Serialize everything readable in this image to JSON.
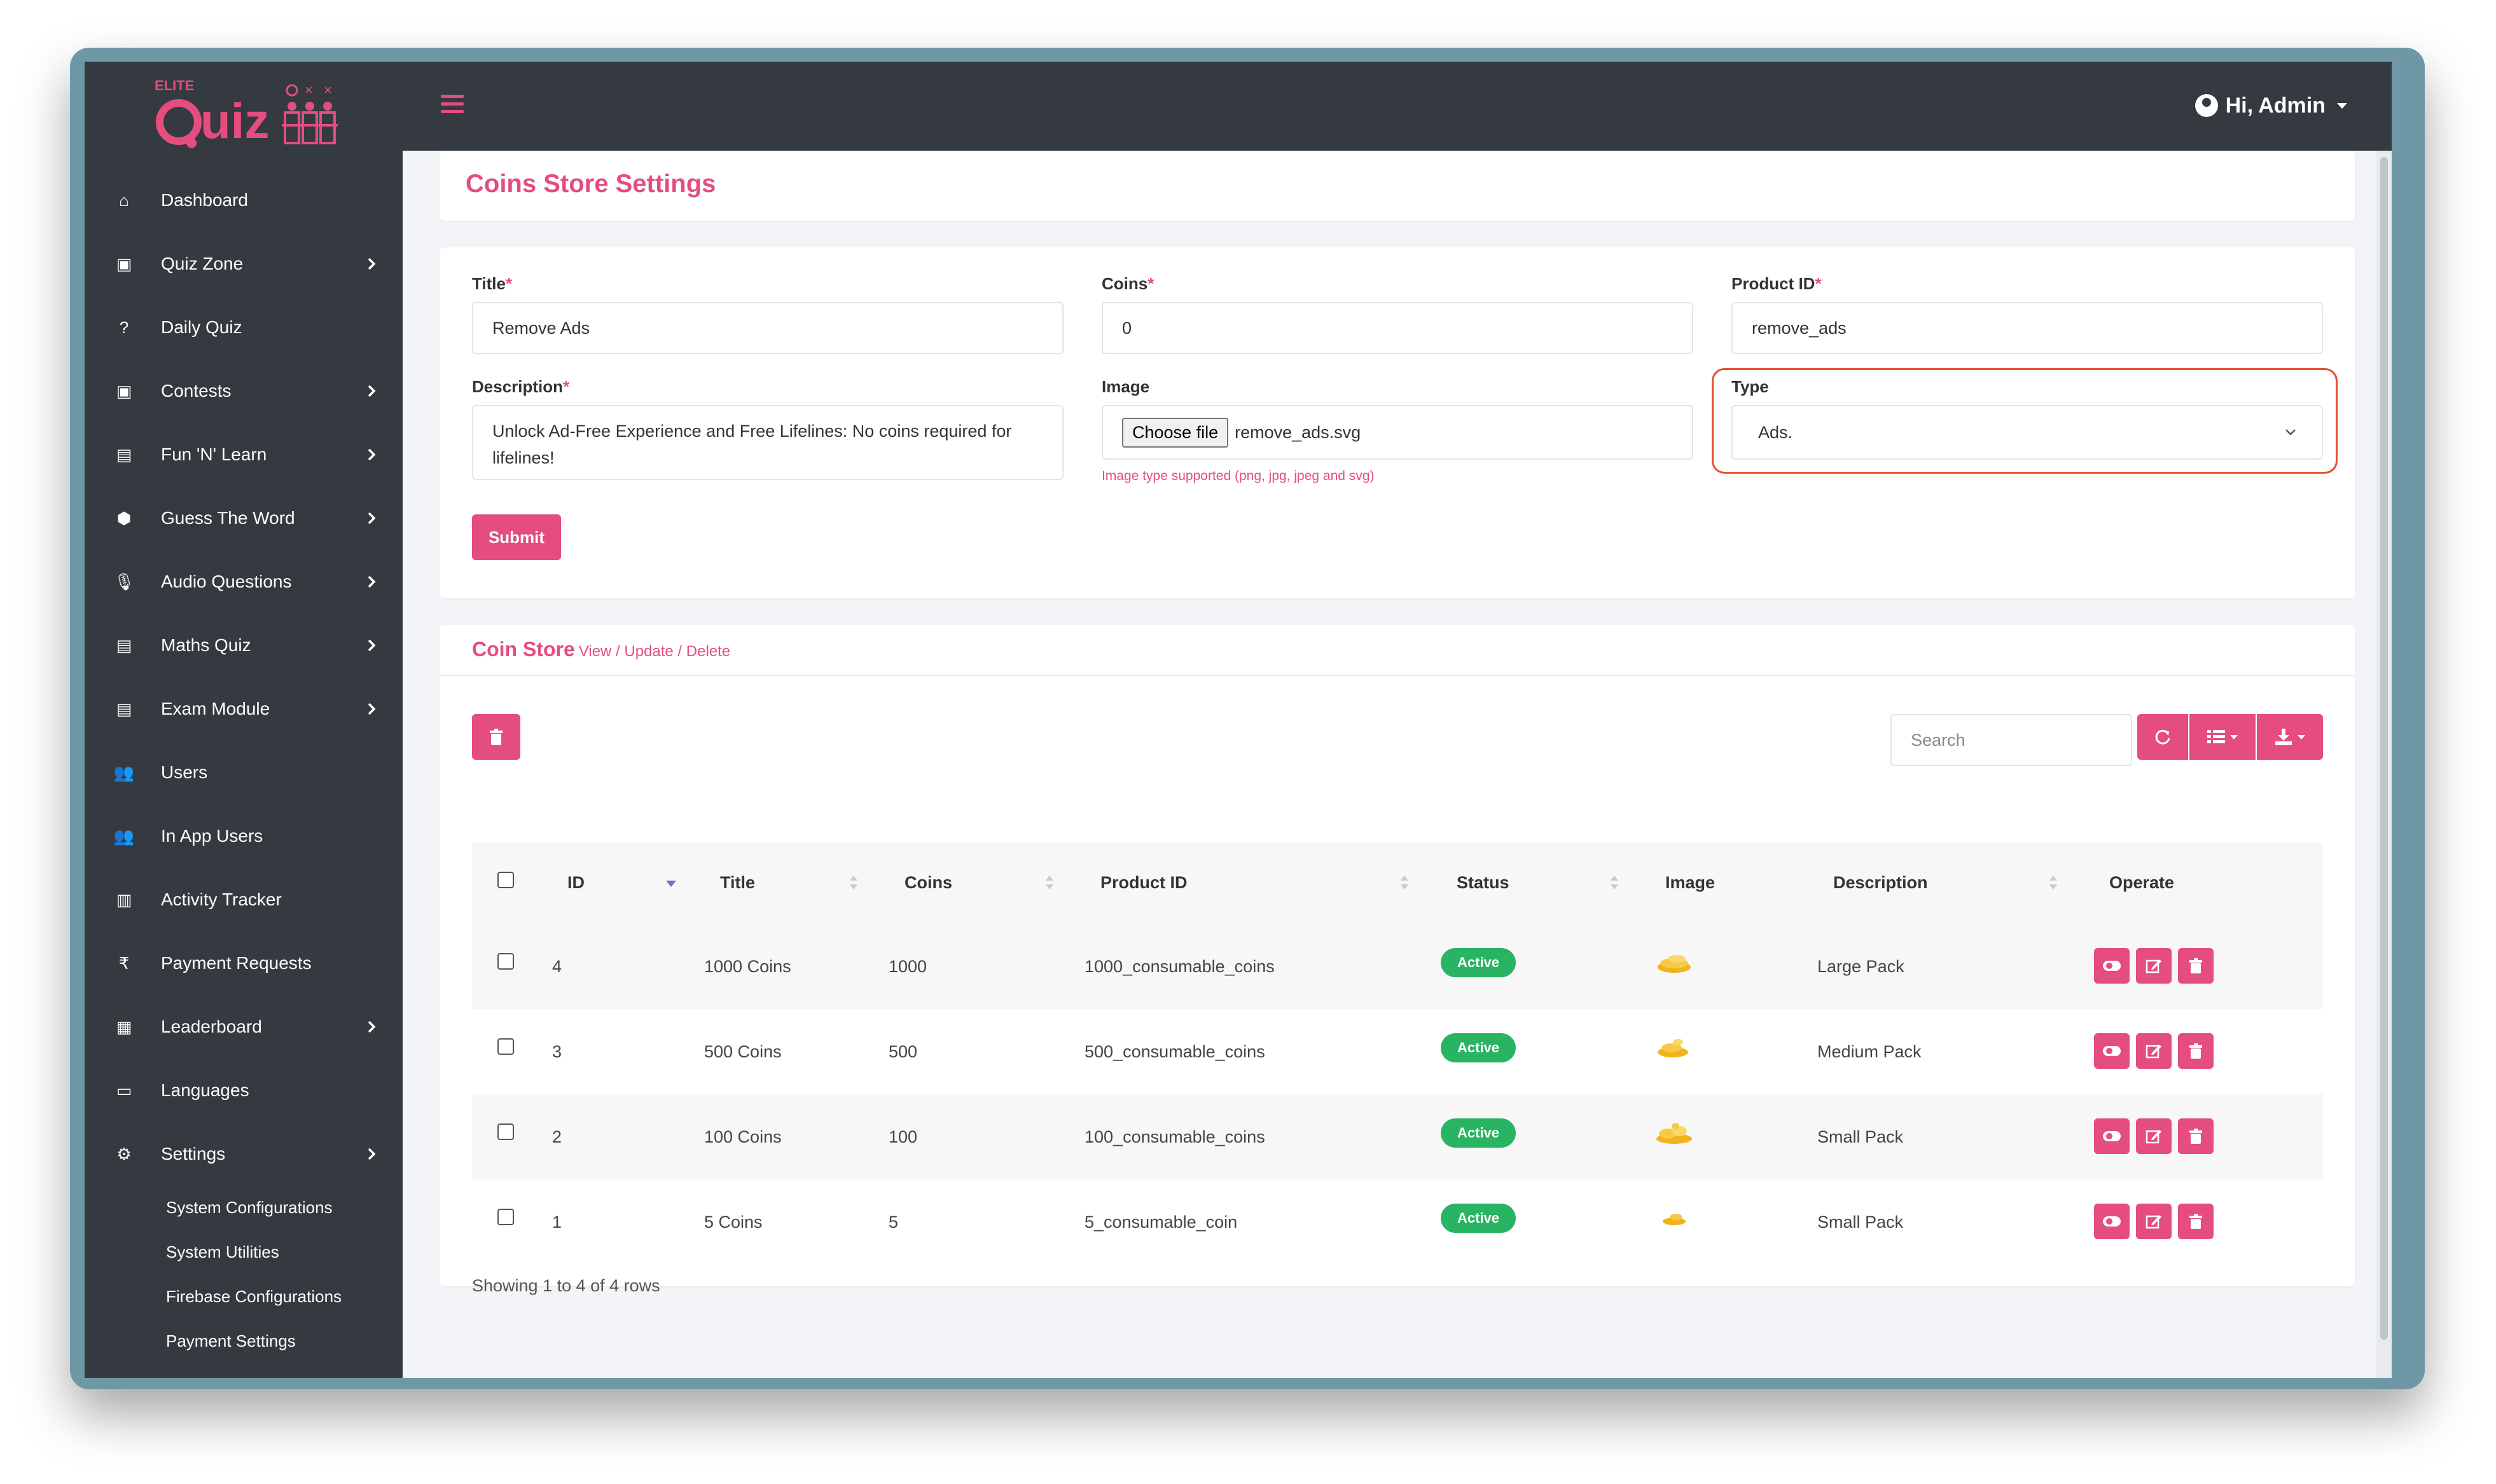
{
  "brand": {
    "small": "ELITE",
    "name": "Quiz"
  },
  "header": {
    "greeting": "Hi, Admin"
  },
  "sidebar": {
    "items": [
      {
        "label": "Dashboard",
        "icon": "home-icon",
        "chevron": false
      },
      {
        "label": "Quiz Zone",
        "icon": "gift-icon",
        "chevron": true
      },
      {
        "label": "Daily Quiz",
        "icon": "question-icon",
        "chevron": false
      },
      {
        "label": "Contests",
        "icon": "gift-icon",
        "chevron": true
      },
      {
        "label": "Fun 'N' Learn",
        "icon": "book-icon",
        "chevron": true
      },
      {
        "label": "Guess The Word",
        "icon": "cog-icon",
        "chevron": true
      },
      {
        "label": "Audio Questions",
        "icon": "microphone-icon",
        "chevron": true
      },
      {
        "label": "Maths Quiz",
        "icon": "book-icon",
        "chevron": true
      },
      {
        "label": "Exam Module",
        "icon": "book-icon",
        "chevron": true
      },
      {
        "label": "Users",
        "icon": "users-icon",
        "chevron": false
      },
      {
        "label": "In App Users",
        "icon": "users-icon",
        "chevron": false
      },
      {
        "label": "Activity Tracker",
        "icon": "chart-icon",
        "chevron": false
      },
      {
        "label": "Payment Requests",
        "icon": "rupee-icon",
        "chevron": false
      },
      {
        "label": "Leaderboard",
        "icon": "grid-icon",
        "chevron": true
      },
      {
        "label": "Languages",
        "icon": "language-icon",
        "chevron": false
      },
      {
        "label": "Settings",
        "icon": "gear-icon",
        "chevron": true
      }
    ],
    "subitems": [
      "System Configurations",
      "System Utilities",
      "Firebase Configurations",
      "Payment Settings"
    ]
  },
  "page": {
    "title": "Coins Store Settings"
  },
  "form": {
    "title_label": "Title",
    "title_value": "Remove Ads",
    "coins_label": "Coins",
    "coins_value": "0",
    "product_label": "Product ID",
    "product_value": "remove_ads",
    "description_label": "Description",
    "description_value": "Unlock Ad-Free Experience and Free Lifelines: No coins required for lifelines!",
    "image_label": "Image",
    "choose_file": "Choose file",
    "file_name": "remove_ads.svg",
    "image_hint": "Image type supported (png, jpg, jpeg and svg)",
    "type_label": "Type",
    "type_value": "Ads.",
    "required_mark": "*",
    "submit": "Submit"
  },
  "store": {
    "title": "Coin Store",
    "subtitle": "View / Update / Delete",
    "search_placeholder": "Search",
    "columns": [
      "ID",
      "Title",
      "Coins",
      "Product ID",
      "Status",
      "Image",
      "Description",
      "Operate"
    ],
    "rows": [
      {
        "id": "4",
        "title": "1000 Coins",
        "coins": "1000",
        "product_id": "1000_consumable_coins",
        "status": "Active",
        "description": "Large Pack",
        "image": "coin-pile-large"
      },
      {
        "id": "3",
        "title": "500 Coins",
        "coins": "500",
        "product_id": "500_consumable_coins",
        "status": "Active",
        "description": "Medium Pack",
        "image": "coin-pile-medium"
      },
      {
        "id": "2",
        "title": "100 Coins",
        "coins": "100",
        "product_id": "100_consumable_coins",
        "status": "Active",
        "description": "Small Pack",
        "image": "coin-pile-small"
      },
      {
        "id": "1",
        "title": "5 Coins",
        "coins": "5",
        "product_id": "5_consumable_coin",
        "status": "Active",
        "description": "Small Pack",
        "image": "coin-pile-tiny"
      }
    ],
    "footer": "Showing 1 to 4 of 4 rows"
  },
  "colors": {
    "accent": "#e44d7e",
    "sidebar": "#343a40",
    "active": "#28b463",
    "focus": "#e2512c"
  }
}
